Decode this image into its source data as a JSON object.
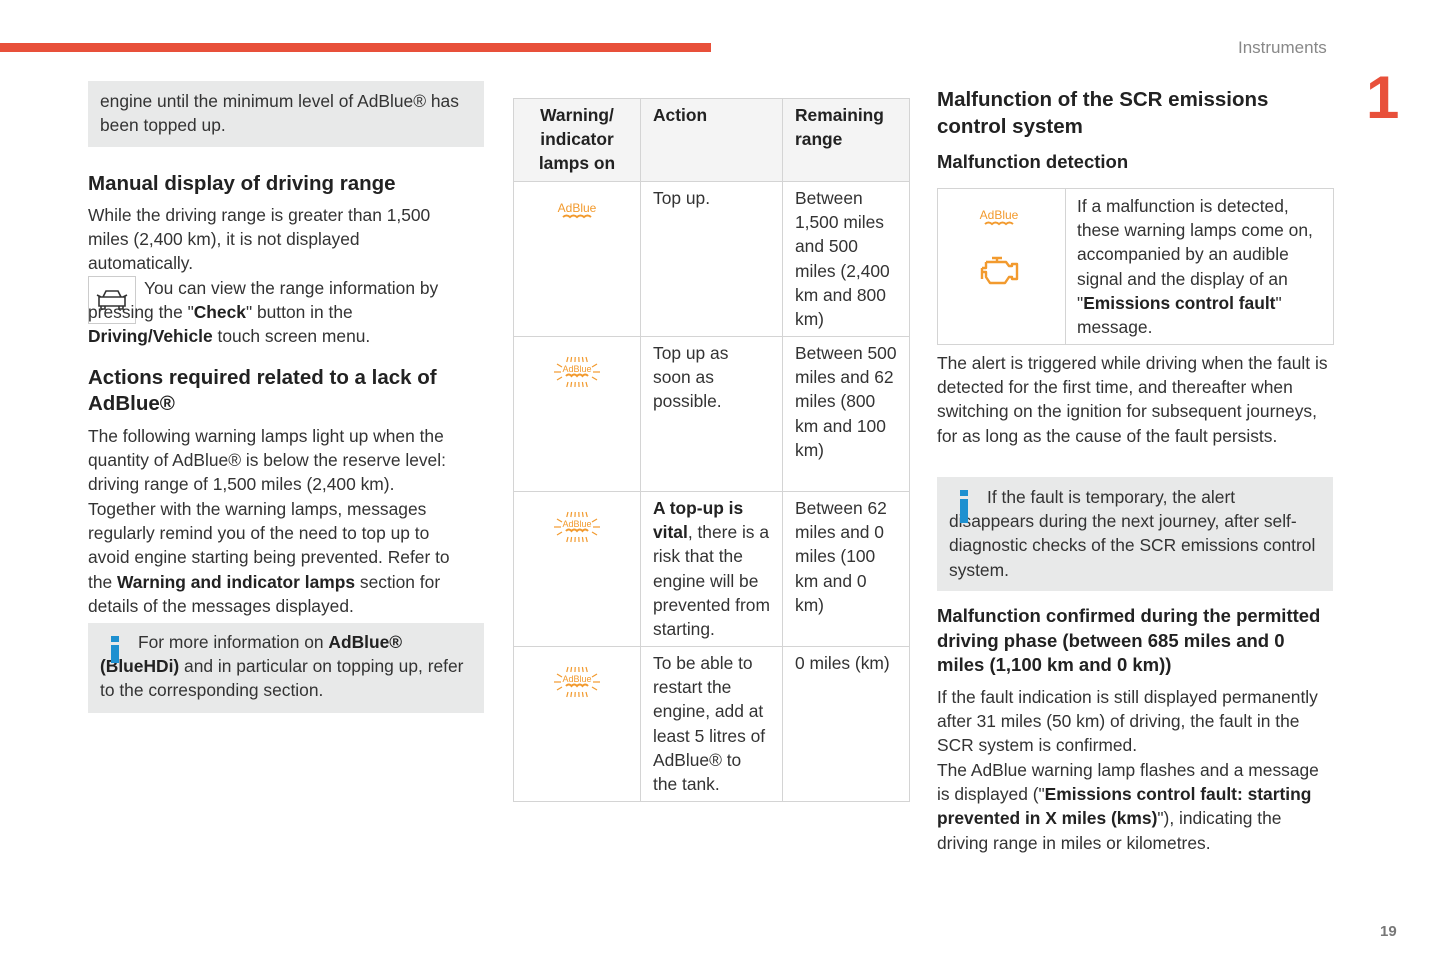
{
  "header": {
    "section": "Instruments",
    "chapter": "1",
    "page_number": "19",
    "accent_color": "#e8503a"
  },
  "left": {
    "top_note": "engine until the minimum level of AdBlue® has been topped up.",
    "manual_title": "Manual display of driving range",
    "manual_p1": "While the driving range is greater than 1,500 miles (2,400 km), it is not displayed automatically.",
    "manual_p2a": "You can view the range information by pressing the \"",
    "manual_p2b": "Check",
    "manual_p2c": "\" button in the ",
    "manual_p2d": "Driving/Vehicle",
    "manual_p2e": " touch screen menu.",
    "actions_title": "Actions required related to a lack of AdBlue®",
    "actions_p1": "The following warning lamps light up when the quantity of AdBlue® is below the reserve level: driving range of 1,500 miles (2,400 km).",
    "actions_p2a": "Together with the warning lamps, messages regularly remind you of the need to top up to avoid engine starting being prevented. Refer to the ",
    "actions_p2b": "Warning and indicator lamps",
    "actions_p2c": " section for details of the messages displayed.",
    "info_a": "For more information on ",
    "info_b": "AdBlue® (BlueHDi)",
    "info_c": " and in particular on topping up, refer to the corresponding section."
  },
  "table": {
    "headers": [
      "Warning/ indicator lamps on",
      "Action",
      "Remaining range"
    ],
    "icon_label": "AdBlue",
    "icon_color": "#f29a2e",
    "rows": [
      {
        "icon": "adblue-steady-icon",
        "action_a": "",
        "action_b": "Top up.",
        "range": "Between 1,500 miles and 500 miles (2,400 km and 800 km)"
      },
      {
        "icon": "adblue-flashing-icon",
        "action_a": "",
        "action_b": "Top up as soon as possible.",
        "range": "Between 500 miles and 62 miles (800 km and 100 km)"
      },
      {
        "icon": "adblue-flashing-icon",
        "action_a": "A top-up is vital",
        "action_b": ", there is a risk that the engine will be prevented from starting.",
        "range": "Between 62 miles and 0 miles (100 km and 0 km)"
      },
      {
        "icon": "adblue-flashing-icon",
        "action_a": "",
        "action_b": "To be able to restart the engine, add at least 5 litres of AdBlue® to the tank.",
        "range": "0 miles (km)"
      }
    ]
  },
  "right": {
    "title": "Malfunction of the SCR emissions control system",
    "detection_title": "Malfunction detection",
    "detect_text_a": "If a malfunction is detected, these warning lamps come on, accompanied by an audible signal and the display of an \"",
    "detect_text_b": "Emissions control fault",
    "detect_text_c": "\" message.",
    "alert_p": "The alert is triggered while driving when the fault is detected for the first time, and thereafter when switching on the ignition for subsequent journeys, for as long as the cause of the fault persists.",
    "info": "If the fault is temporary, the alert disappears during the next journey, after self-diagnostic checks of the SCR emissions control system.",
    "confirmed_title": "Malfunction confirmed during the permitted driving phase (between 685 miles and 0 miles (1,100 km and 0 km))",
    "confirmed_p1": "If the fault indication is still displayed permanently after 31 miles (50 km) of driving, the fault in the SCR system is confirmed.",
    "confirmed_p2a": "The AdBlue warning lamp flashes and a message is displayed (\"",
    "confirmed_p2b": "Emissions control fault: starting prevented in X miles (kms)",
    "confirmed_p2c": "\"), indicating the driving range in miles or kilometres."
  }
}
